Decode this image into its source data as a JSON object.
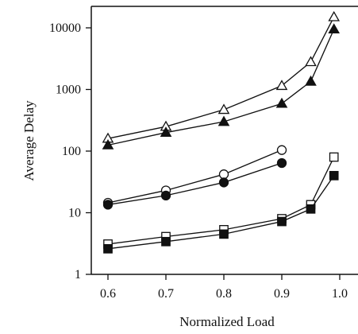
{
  "chart_data": {
    "type": "line",
    "xlabel": "Normalized Load",
    "ylabel": "Average Delay",
    "x_ticks": [
      "0.6",
      "0.7",
      "0.8",
      "0.9",
      "1.0"
    ],
    "y_ticks": [
      "1",
      "10",
      "100",
      "1000",
      "10000"
    ],
    "xlim": [
      0.6,
      1.0
    ],
    "ylim": [
      1,
      10000
    ],
    "y_scale": "log",
    "grid": false,
    "series": [
      {
        "marker": "triangle-open",
        "x": [
          0.6,
          0.7,
          0.8,
          0.9,
          0.95,
          0.99
        ],
        "y": [
          160,
          250,
          470,
          1150,
          2800,
          15000
        ]
      },
      {
        "marker": "triangle-filled",
        "x": [
          0.6,
          0.7,
          0.8,
          0.9,
          0.95,
          0.99
        ],
        "y": [
          125,
          200,
          300,
          590,
          1350,
          9500
        ]
      },
      {
        "marker": "circle-open",
        "x": [
          0.6,
          0.7,
          0.8,
          0.9
        ],
        "y": [
          14.5,
          23,
          42,
          104
        ]
      },
      {
        "marker": "circle-filled",
        "x": [
          0.6,
          0.7,
          0.8,
          0.9
        ],
        "y": [
          13.5,
          19,
          31,
          64
        ]
      },
      {
        "marker": "square-open",
        "x": [
          0.6,
          0.7,
          0.8,
          0.9,
          0.95,
          0.99
        ],
        "y": [
          3.1,
          4.1,
          5.3,
          8.0,
          13.5,
          80
        ]
      },
      {
        "marker": "square-filled",
        "x": [
          0.6,
          0.7,
          0.8,
          0.9,
          0.95,
          0.99
        ],
        "y": [
          2.6,
          3.4,
          4.5,
          7.2,
          11.5,
          40
        ]
      }
    ]
  }
}
